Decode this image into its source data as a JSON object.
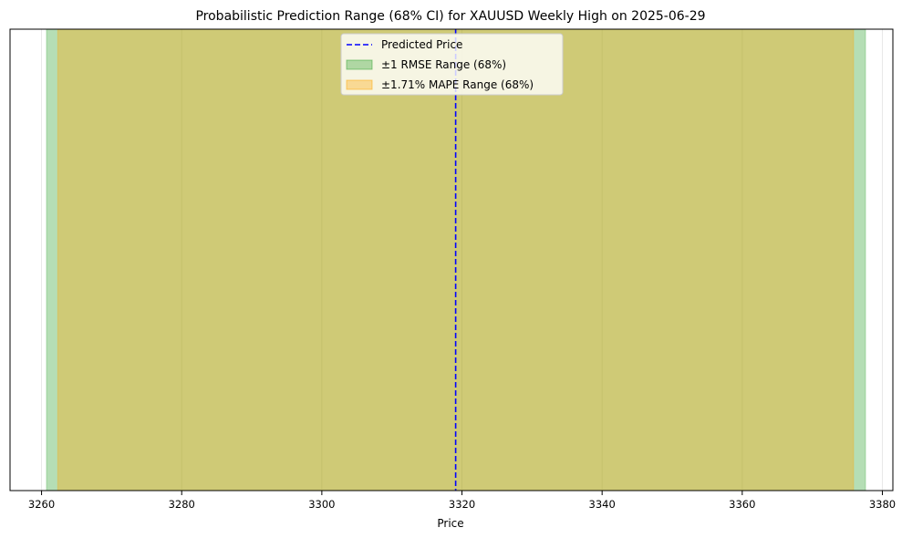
{
  "chart_data": {
    "type": "range",
    "title": "Probabilistic Prediction Range (68% CI) for XAUUSD Weekly High on 2025-06-29",
    "xlabel": "Price",
    "ylabel": "",
    "xlim": [
      3255.5,
      3381.5
    ],
    "xticks": [
      3260,
      3280,
      3300,
      3320,
      3340,
      3360,
      3380
    ],
    "grid": true,
    "legend_position": "top-center",
    "predicted_price": 3319.1,
    "series": [
      {
        "name": "Predicted Price",
        "kind": "vline",
        "value": 3319.1,
        "color": "#0000ff",
        "style": "dashed"
      },
      {
        "name": "±1 RMSE Range (68%)",
        "kind": "band",
        "range": [
          3260.7,
          3377.6
        ],
        "color": "#2ca02c",
        "alpha": 0.35
      },
      {
        "name": "±1.71% MAPE Range (68%)",
        "kind": "band",
        "range": [
          3262.3,
          3375.9
        ],
        "color": "#ffa500",
        "alpha": 0.35
      }
    ]
  }
}
